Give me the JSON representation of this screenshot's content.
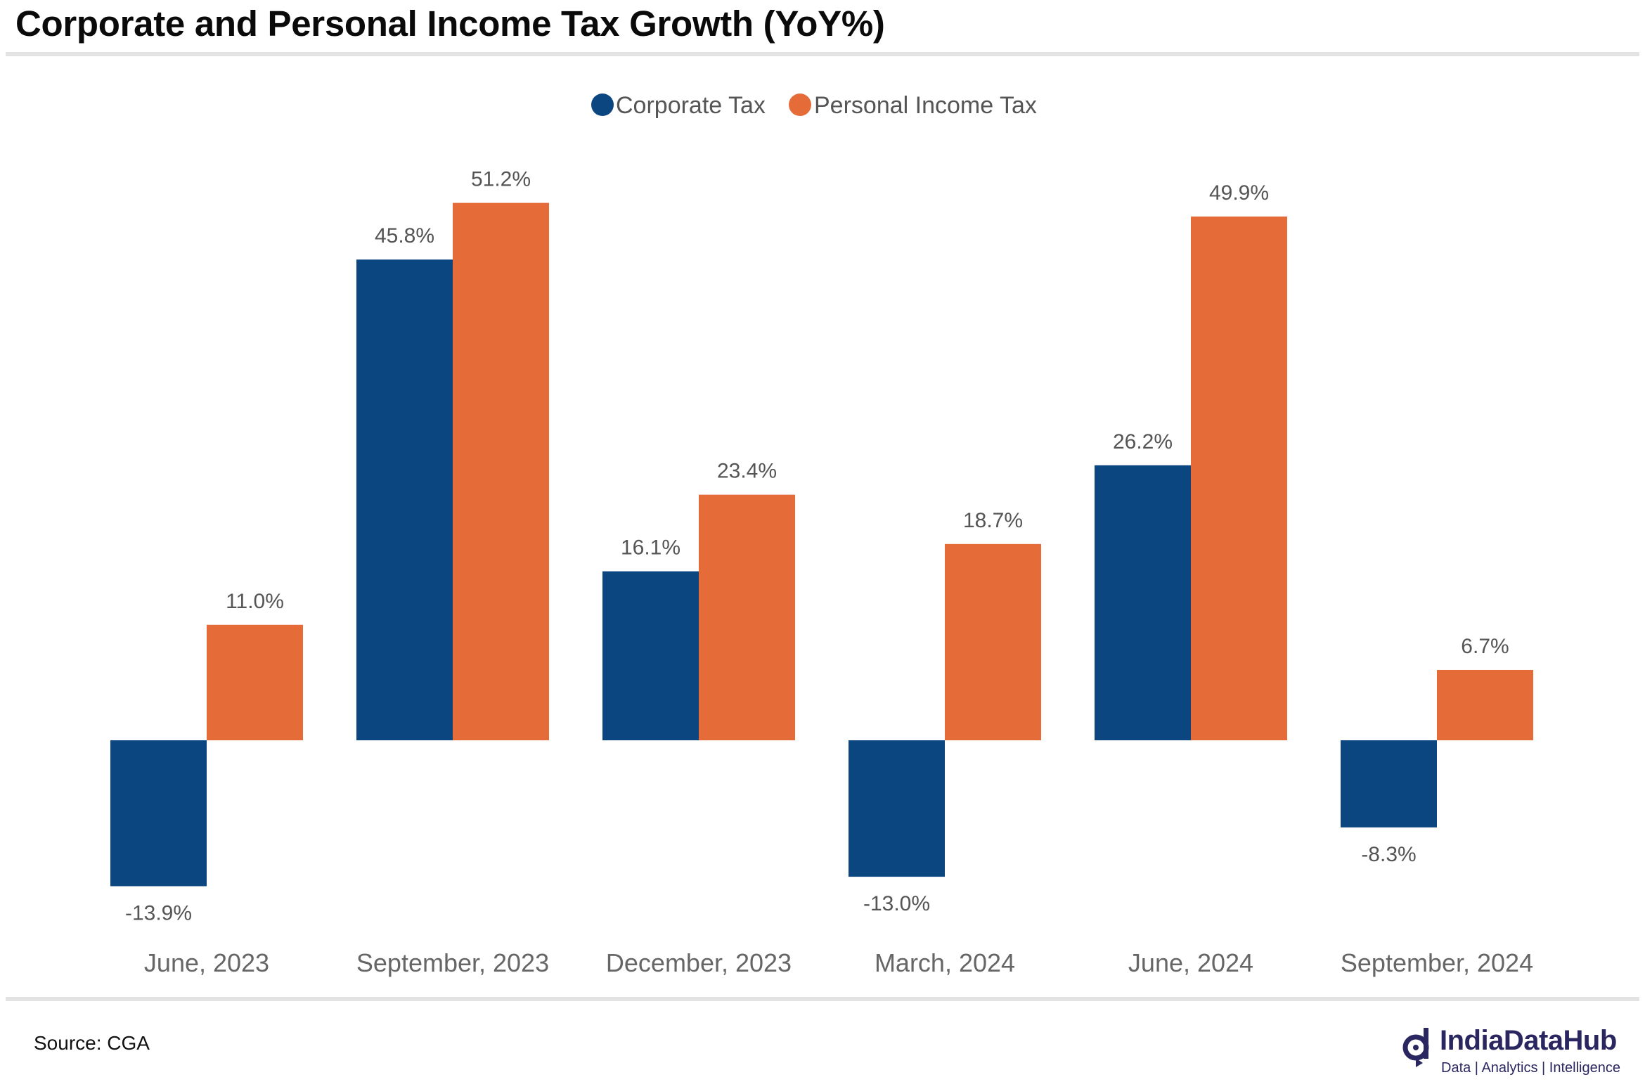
{
  "header": {
    "title": "Corporate and Personal Income Tax Growth (YoY%)"
  },
  "footer": {
    "source": "Source: CGA"
  },
  "logo": {
    "name": "IndiaDataHub",
    "tagline": "Data | Analytics | Intelligence"
  },
  "chart_data": {
    "type": "bar",
    "title": "Corporate and Personal Income Tax Growth (YoY%)",
    "xlabel": "",
    "ylabel": "",
    "grid": false,
    "legend": "top-center",
    "categories": [
      "June, 2023",
      "September, 2023",
      "December, 2023",
      "March, 2024",
      "June, 2024",
      "September, 2024"
    ],
    "series": [
      {
        "name": "Corporate Tax",
        "color": "#0b4680",
        "values": [
          -13.9,
          45.8,
          16.1,
          -13.0,
          26.2,
          -8.3
        ],
        "labels": [
          "-13.9%",
          "45.8%",
          "16.1%",
          "-13.0%",
          "26.2%",
          "-8.3%"
        ]
      },
      {
        "name": "Personal Income Tax",
        "color": "#e56b38",
        "values": [
          11.0,
          51.2,
          23.4,
          18.7,
          49.9,
          6.7
        ],
        "labels": [
          "11.0%",
          "51.2%",
          "23.4%",
          "18.7%",
          "49.9%",
          "6.7%"
        ]
      }
    ],
    "label_color": "#555555",
    "tick_color": "#666666"
  }
}
